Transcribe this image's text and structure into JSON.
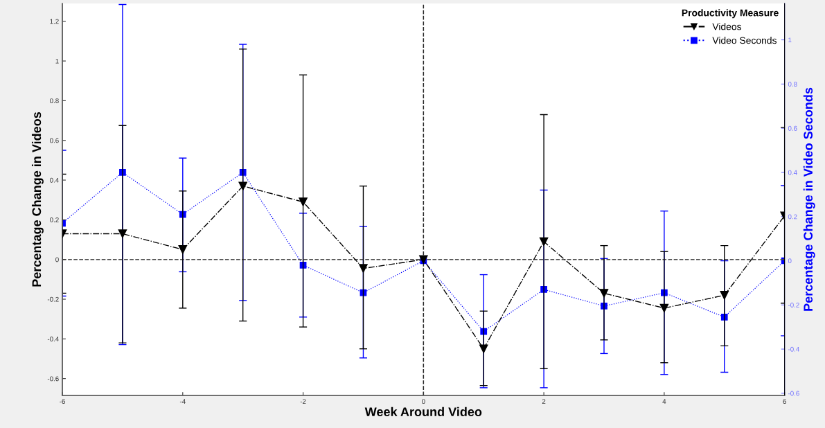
{
  "chart_data": {
    "type": "line",
    "xlabel": "Week Around Video",
    "ylabel": "Percentage Change in Videos",
    "y2label": "Percentage Change in Video Seconds",
    "legend_title": "Productivity Measure",
    "x": [
      -6,
      -5,
      -4,
      -3,
      -2,
      -1,
      0,
      1,
      2,
      3,
      4,
      5,
      6
    ],
    "series": [
      {
        "name": "Videos",
        "color": "#000000",
        "marker": "triangle",
        "line_style": "dashdot",
        "values": [
          0.13,
          0.13,
          0.05,
          0.37,
          0.29,
          -0.045,
          0,
          -0.45,
          0.09,
          -0.17,
          -0.245,
          -0.18,
          0.22
        ],
        "errors": [
          [
            -0.17,
            0.43
          ],
          [
            -0.42,
            0.675
          ],
          [
            -0.245,
            0.345
          ],
          [
            -0.31,
            1.06
          ],
          [
            -0.34,
            0.93
          ],
          [
            -0.45,
            0.37
          ],
          null,
          [
            -0.635,
            -0.26
          ],
          [
            -0.55,
            0.73
          ],
          [
            -0.405,
            0.07
          ],
          [
            -0.52,
            0.04
          ],
          [
            -0.435,
            0.07
          ],
          [
            -0.22,
            0.665
          ]
        ]
      },
      {
        "name": "Video Seconds",
        "color": "#0000ff",
        "marker": "square",
        "line_style": "dotted",
        "axis": "y2",
        "values": [
          0.17,
          0.4,
          0.21,
          0.4,
          -0.02,
          -0.145,
          0,
          -0.32,
          -0.13,
          -0.205,
          -0.145,
          -0.255,
          0
        ],
        "errors": [
          [
            -0.16,
            0.5
          ],
          [
            -0.38,
            1.16
          ],
          [
            -0.05,
            0.465
          ],
          [
            -0.18,
            0.98
          ],
          [
            -0.255,
            0.215
          ],
          [
            -0.44,
            0.155
          ],
          null,
          [
            -0.575,
            -0.063
          ],
          [
            -0.575,
            0.32
          ],
          [
            -0.42,
            0.01
          ],
          [
            -0.515,
            0.225
          ],
          [
            -0.505,
            0.0
          ],
          [
            -0.34,
            0.34
          ]
        ]
      }
    ],
    "xlim": [
      -6,
      6
    ],
    "xticks": [
      -6,
      -4,
      -2,
      0,
      2,
      4,
      6
    ],
    "ylim": [
      -0.685,
      1.29
    ],
    "yticks": [
      -0.6,
      -0.4,
      -0.2,
      0,
      0.2,
      0.4,
      0.6,
      0.8,
      1,
      1.2
    ],
    "y2lim": [
      -0.61,
      1.165
    ],
    "y2ticks": [
      -0.6,
      -0.4,
      -0.2,
      0,
      0.2,
      0.4,
      0.6,
      0.8,
      1
    ],
    "ref_lines": [
      {
        "axis": "y",
        "value": 0,
        "color": "#4d4d4d",
        "line_style": "dashed"
      },
      {
        "axis": "x",
        "value": 0,
        "color": "#262626",
        "line_style": "dashed"
      }
    ],
    "legend": "top right",
    "grid": false
  }
}
